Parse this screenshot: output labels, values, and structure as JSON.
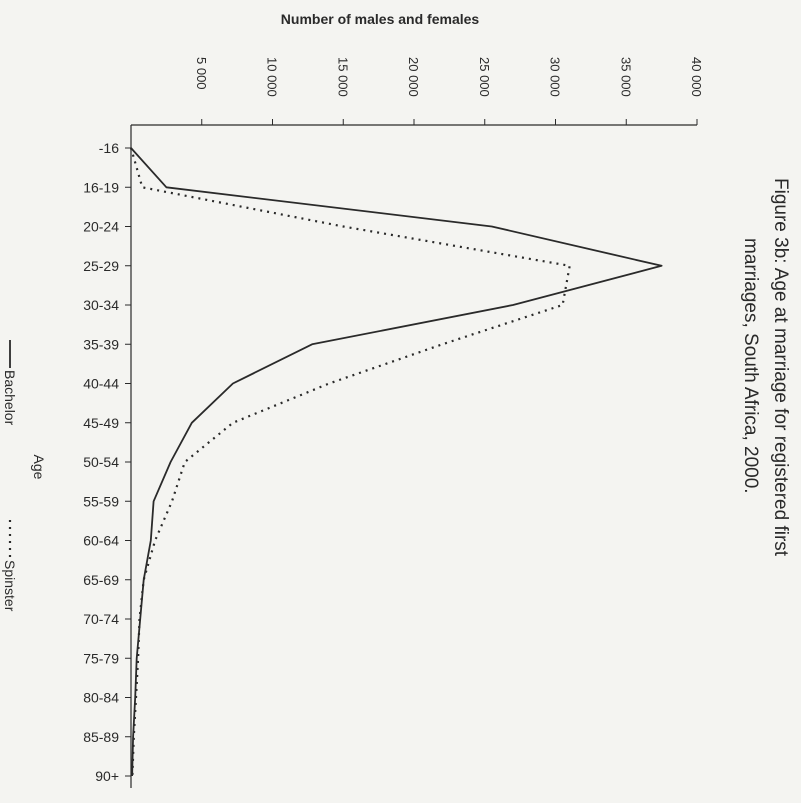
{
  "chart_data": {
    "type": "line",
    "title": "Figure 3b: Age at marriage for registered first marriages, South Africa, 2000.",
    "title_lines": [
      "Figure 3b: Age at marriage for registered first",
      "marriages, South Africa, 2000."
    ],
    "xlabel": "Age",
    "ylabel": "Number of males and females",
    "categories": [
      "-16",
      "16-19",
      "20-24",
      "25-29",
      "30-34",
      "35-39",
      "40-44",
      "45-49",
      "50-54",
      "55-59",
      "60-64",
      "65-69",
      "70-74",
      "75-79",
      "80-84",
      "85-89",
      "90+"
    ],
    "ylim": [
      0,
      40000
    ],
    "yticks": [
      5000,
      10000,
      15000,
      20000,
      25000,
      30000,
      35000,
      40000
    ],
    "ytick_labels": [
      "5 000",
      "10 000",
      "15 000",
      "20 000",
      "25 000",
      "30 000",
      "35 000",
      "40 000"
    ],
    "series": [
      {
        "name": "Bachelor",
        "style": "solid",
        "values": [
          0,
          2500,
          25500,
          37500,
          27000,
          12800,
          7200,
          4300,
          2800,
          1600,
          1400,
          900,
          650,
          400,
          300,
          150,
          80
        ]
      },
      {
        "name": "Spinster",
        "style": "dotted",
        "values": [
          0,
          800,
          15000,
          31000,
          30500,
          22000,
          14000,
          7200,
          3800,
          2900,
          1700,
          900,
          600,
          500,
          350,
          200,
          100
        ]
      }
    ],
    "legend_position": "bottom",
    "grid": false,
    "colors": {
      "line": "#2a2a2a",
      "axis": "#2a2a2a",
      "background": "#f4f4f1"
    }
  }
}
